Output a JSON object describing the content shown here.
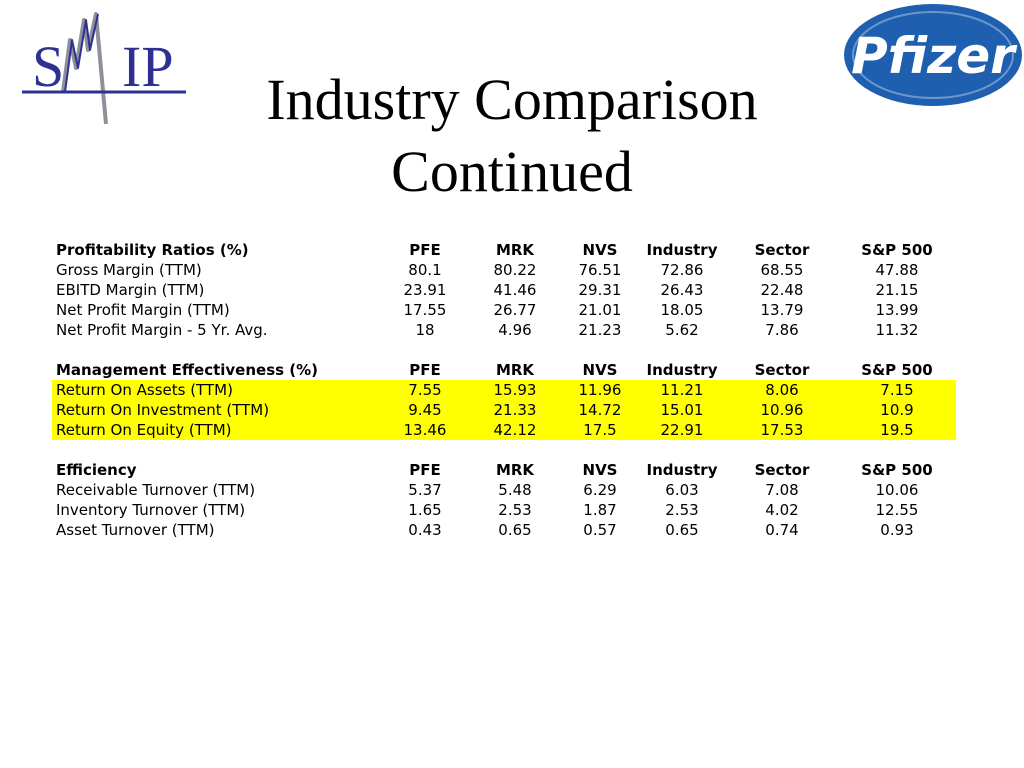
{
  "header": {
    "title_line1": "Industry Comparison",
    "title_line2": "Continued",
    "smip_logo_text": "SMIP",
    "pfizer_logo_text": "Pfizer"
  },
  "colors": {
    "highlight": "#ffff00",
    "smip_blue": "#2e3192",
    "pfizer_blue": "#1f5fb0"
  },
  "sections": [
    {
      "header": [
        "Profitability Ratios (%)",
        "PFE",
        "MRK",
        "NVS",
        "Industry",
        "Sector",
        "S&P 500"
      ],
      "rows": [
        {
          "highlight": false,
          "cells": [
            "Gross Margin (TTM)",
            "80.1",
            "80.22",
            "76.51",
            "72.86",
            "68.55",
            "47.88"
          ]
        },
        {
          "highlight": false,
          "cells": [
            "EBITD Margin (TTM)",
            "23.91",
            "41.46",
            "29.31",
            "26.43",
            "22.48",
            "21.15"
          ]
        },
        {
          "highlight": false,
          "cells": [
            "Net Profit Margin (TTM)",
            "17.55",
            "26.77",
            "21.01",
            "18.05",
            "13.79",
            "13.99"
          ]
        },
        {
          "highlight": false,
          "cells": [
            "Net Profit Margin - 5 Yr. Avg.",
            "18",
            "4.96",
            "21.23",
            "5.62",
            "7.86",
            "11.32"
          ]
        }
      ]
    },
    {
      "header": [
        "Management Effectiveness (%)",
        "PFE",
        "MRK",
        "NVS",
        "Industry",
        "Sector",
        "S&P 500"
      ],
      "rows": [
        {
          "highlight": true,
          "cells": [
            "Return On Assets (TTM)",
            "7.55",
            "15.93",
            "11.96",
            "11.21",
            "8.06",
            "7.15"
          ]
        },
        {
          "highlight": true,
          "cells": [
            "Return On Investment (TTM)",
            "9.45",
            "21.33",
            "14.72",
            "15.01",
            "10.96",
            "10.9"
          ]
        },
        {
          "highlight": true,
          "cells": [
            "Return On Equity (TTM)",
            "13.46",
            "42.12",
            "17.5",
            "22.91",
            "17.53",
            "19.5"
          ]
        }
      ]
    },
    {
      "header": [
        "Efficiency",
        "PFE",
        "MRK",
        "NVS",
        "Industry",
        "Sector",
        "S&P 500"
      ],
      "rows": [
        {
          "highlight": false,
          "cells": [
            "Receivable Turnover (TTM)",
            "5.37",
            "5.48",
            "6.29",
            "6.03",
            "7.08",
            "10.06"
          ]
        },
        {
          "highlight": false,
          "cells": [
            "Inventory Turnover (TTM)",
            "1.65",
            "2.53",
            "1.87",
            "2.53",
            "4.02",
            "12.55"
          ]
        },
        {
          "highlight": false,
          "cells": [
            "Asset Turnover (TTM)",
            "0.43",
            "0.65",
            "0.57",
            "0.65",
            "0.74",
            "0.93"
          ]
        }
      ]
    }
  ]
}
